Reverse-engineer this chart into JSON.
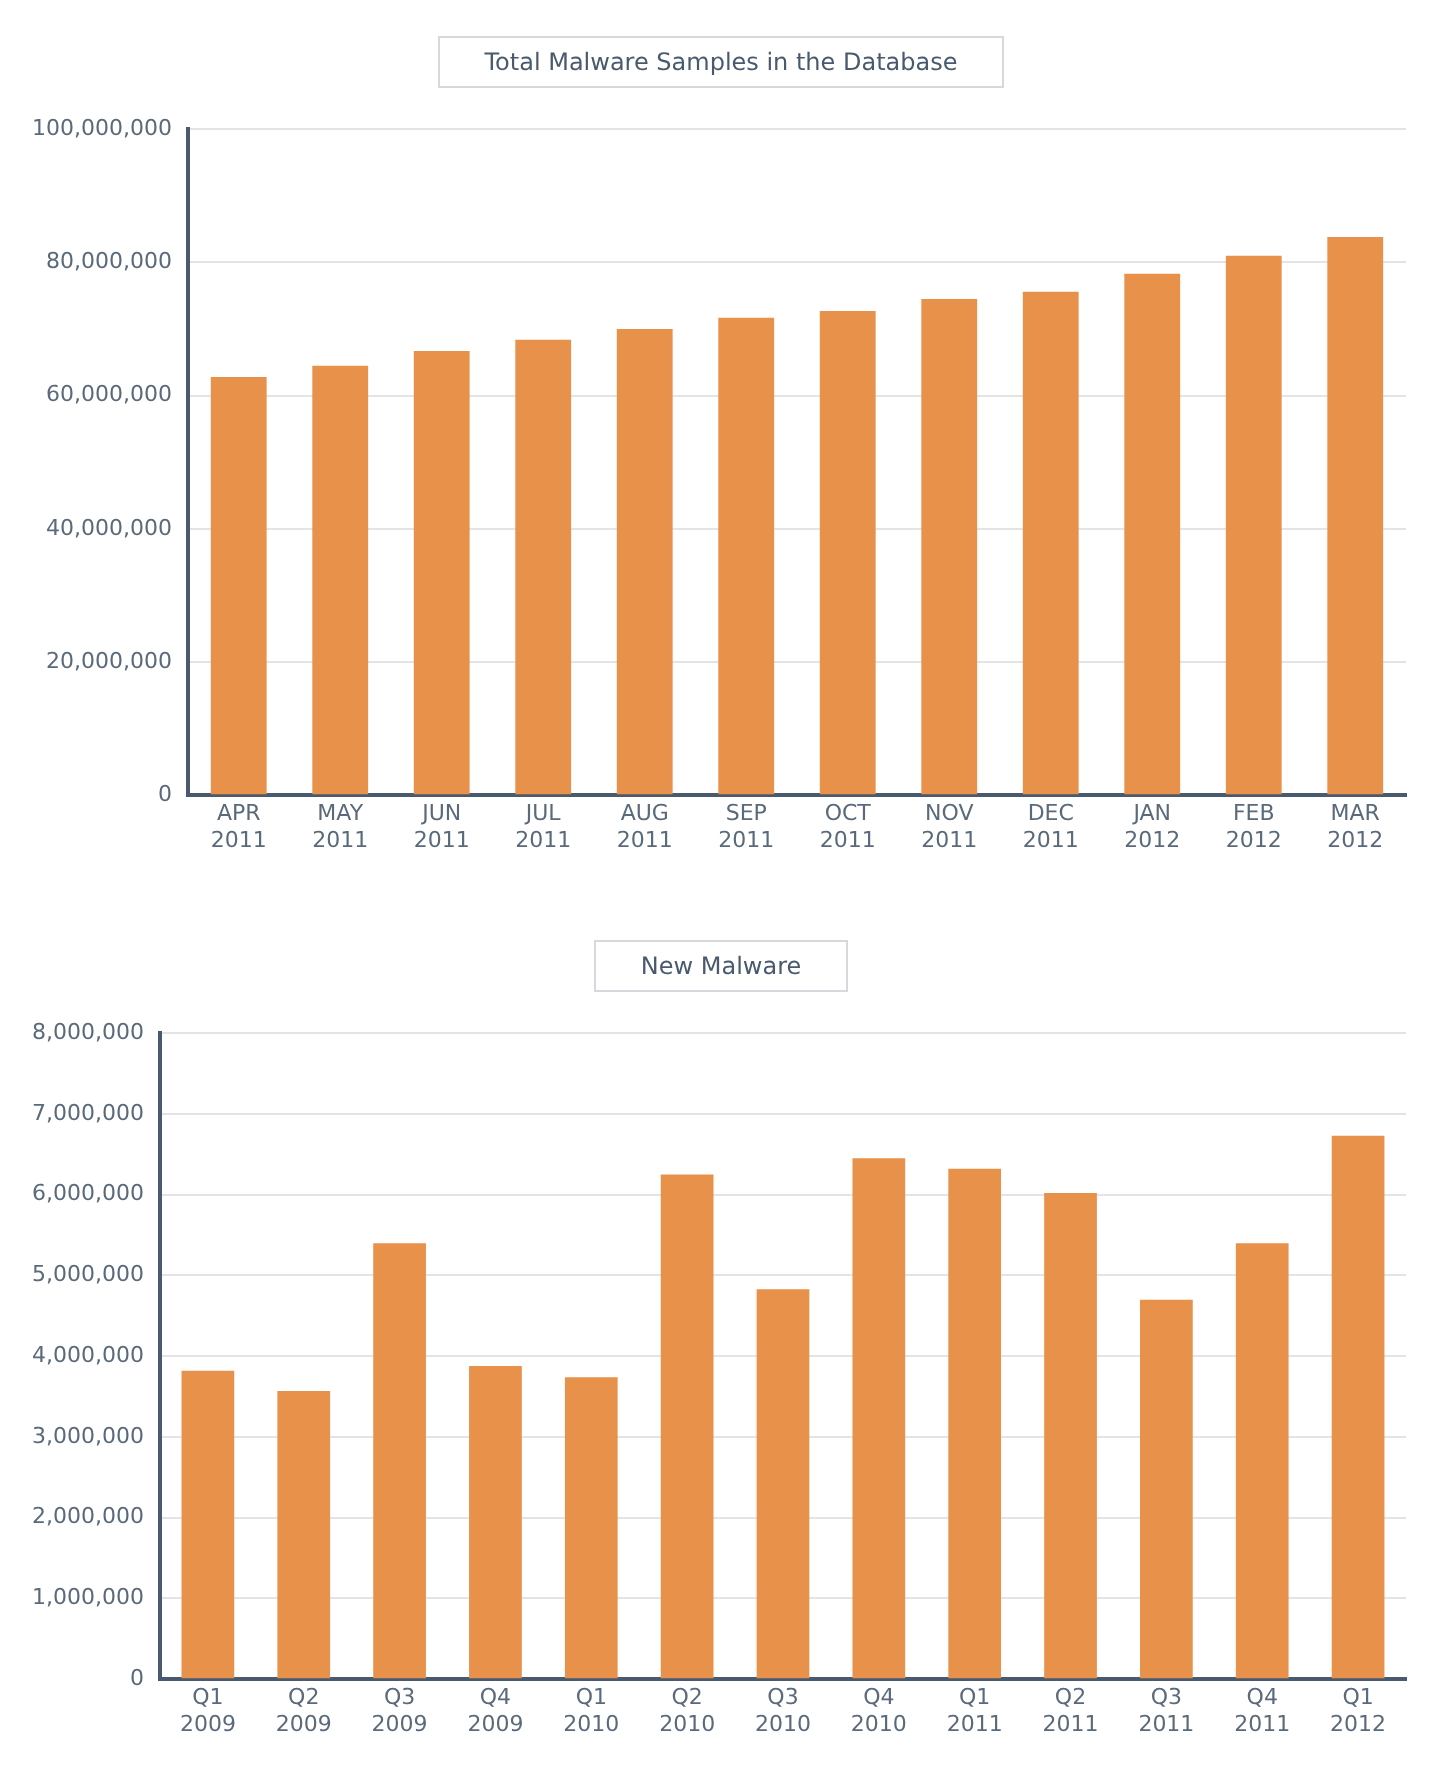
{
  "chart_data": [
    {
      "type": "bar",
      "title": "Total Malware Samples in the Database",
      "categories": [
        "APR 2011",
        "MAY 2011",
        "JUN 2011",
        "JUL 2011",
        "AUG 2011",
        "SEP 2011",
        "OCT 2011",
        "NOV 2011",
        "DEC 2011",
        "JAN 2012",
        "FEB 2012",
        "MAR 2012"
      ],
      "values": [
        62800000,
        64500000,
        66700000,
        68400000,
        70000000,
        71700000,
        72700000,
        74500000,
        75600000,
        78300000,
        81000000,
        83800000
      ],
      "color": "#e8914a",
      "ylim": [
        0,
        100000000
      ],
      "yticks": [
        {
          "value": 0,
          "label": "0"
        },
        {
          "value": 20000000,
          "label": "20,000,000"
        },
        {
          "value": 40000000,
          "label": "40,000,000"
        },
        {
          "value": 60000000,
          "label": "60,000,000"
        },
        {
          "value": 80000000,
          "label": "80,000,000"
        },
        {
          "value": 100000000,
          "label": "100,000,000"
        }
      ],
      "grid": "y",
      "legend": false
    },
    {
      "type": "bar",
      "title": "New Malware",
      "categories": [
        "Q1 2009",
        "Q2 2009",
        "Q3 2009",
        "Q4 2009",
        "Q1 2010",
        "Q2 2010",
        "Q3 2010",
        "Q4 2010",
        "Q1 2011",
        "Q2 2011",
        "Q3 2011",
        "Q4 2011",
        "Q1 2012"
      ],
      "values": [
        3820000,
        3570000,
        5400000,
        3880000,
        3740000,
        6250000,
        4830000,
        6450000,
        6320000,
        6020000,
        4700000,
        5400000,
        6730000
      ],
      "color": "#e8914a",
      "ylim": [
        0,
        8000000
      ],
      "yticks": [
        {
          "value": 0,
          "label": "0"
        },
        {
          "value": 1000000,
          "label": "1,000,000"
        },
        {
          "value": 2000000,
          "label": "2,000,000"
        },
        {
          "value": 3000000,
          "label": "3,000,000"
        },
        {
          "value": 4000000,
          "label": "4,000,000"
        },
        {
          "value": 5000000,
          "label": "5,000,000"
        },
        {
          "value": 6000000,
          "label": "6,000,000"
        },
        {
          "value": 7000000,
          "label": "7,000,000"
        },
        {
          "value": 8000000,
          "label": "8,000,000"
        }
      ],
      "grid": "y",
      "legend": false
    }
  ]
}
